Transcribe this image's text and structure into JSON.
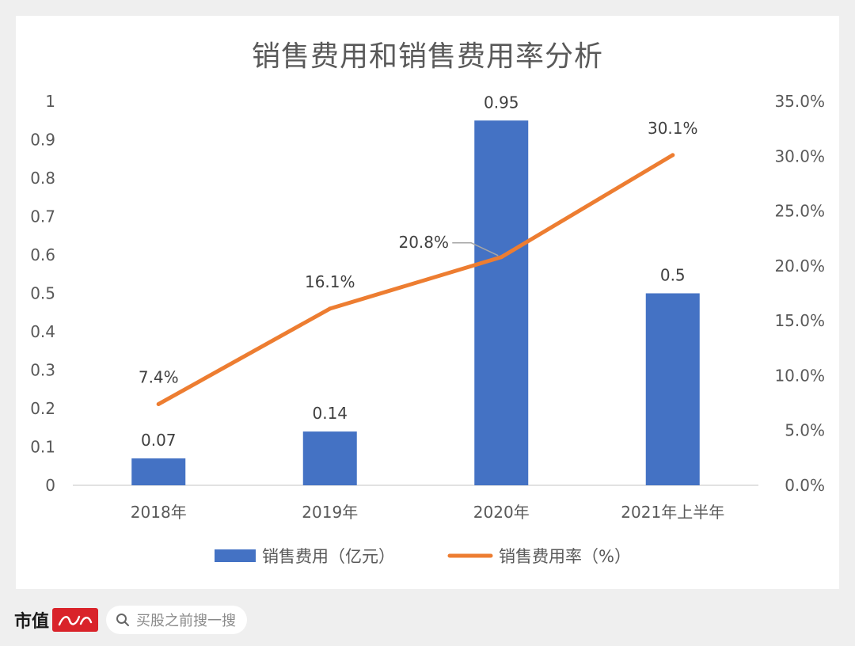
{
  "chart_data": {
    "type": "bar+line",
    "title": "销售费用和销售费用率分析",
    "categories": [
      "2018年",
      "2019年",
      "2020年",
      "2021年上半年"
    ],
    "series": [
      {
        "name": "销售费用（亿元）",
        "type": "bar",
        "axis": "left",
        "color": "#4472c4",
        "values": [
          0.07,
          0.14,
          0.95,
          0.5
        ],
        "labels": [
          "0.07",
          "0.14",
          "0.95",
          "0.5"
        ]
      },
      {
        "name": "销售费用率（%）",
        "type": "line",
        "axis": "right",
        "color": "#ed7d31",
        "values": [
          7.4,
          16.1,
          20.8,
          30.1
        ],
        "labels": [
          "7.4%",
          "16.1%",
          "20.8%",
          "30.1%"
        ]
      }
    ],
    "y_left": {
      "range": [
        0,
        1
      ],
      "ticks": [
        "0",
        "0.1",
        "0.2",
        "0.3",
        "0.4",
        "0.5",
        "0.6",
        "0.7",
        "0.8",
        "0.9",
        "1"
      ]
    },
    "y_right": {
      "range": [
        0,
        35
      ],
      "ticks": [
        "0.0%",
        "5.0%",
        "10.0%",
        "15.0%",
        "20.0%",
        "25.0%",
        "30.0%",
        "35.0%"
      ]
    },
    "grid": false,
    "legend": "bottom"
  },
  "footer": {
    "brand": "市值",
    "search_placeholder": "买股之前搜一搜"
  },
  "icons": {
    "search": "search-icon",
    "logo": "brand-logo-icon"
  },
  "colors": {
    "bar": "#4472c4",
    "line": "#ed7d31",
    "page_background": "#efefef",
    "brand_red": "#d9232a"
  }
}
